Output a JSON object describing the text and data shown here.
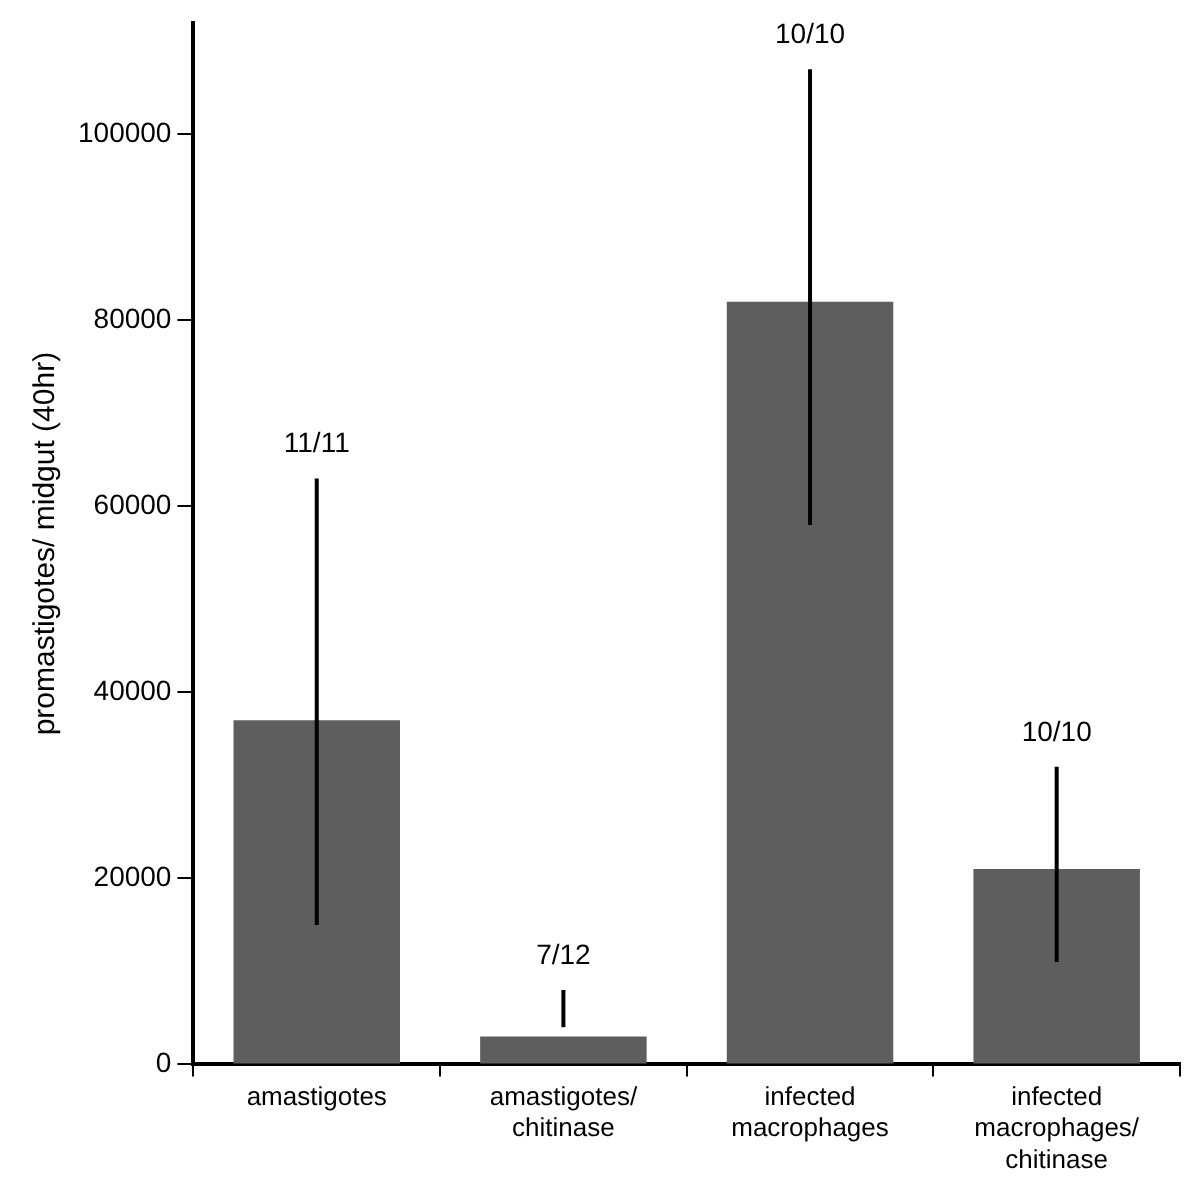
{
  "chart_data": {
    "type": "bar",
    "ylabel": "promastigotes/ midgut (40hr)",
    "categories": [
      "amastigotes",
      "amastigotes/\nchitinase",
      "infected\nmacrophages",
      "infected\nmacrophages/\nchitinase"
    ],
    "values": [
      37000,
      3000,
      82000,
      21000
    ],
    "errors": [
      [
        15000,
        63000
      ],
      [
        4000,
        8000
      ],
      [
        58000,
        107000
      ],
      [
        11000,
        32000
      ]
    ],
    "color": "#5e5e5e",
    "ylim": [
      0,
      112000
    ],
    "yticks": [
      0,
      20000,
      40000,
      60000,
      80000,
      100000
    ],
    "grid": false,
    "legend": false,
    "annotations": [
      "11/11",
      "7/12",
      "10/10",
      "10/10"
    ]
  }
}
